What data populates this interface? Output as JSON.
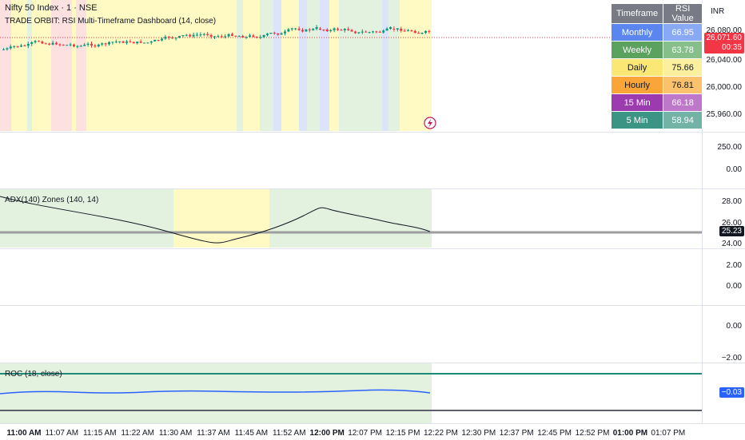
{
  "header": {
    "symbol_title": "Nifty 50 Index · 1 · NSE",
    "indicator_title": "TRADE ORBIT: RSI Multi-Timeframe Dashboard  (14, close)",
    "currency": "INR"
  },
  "rsi_table": {
    "headers": [
      "Timeframe",
      "RSI Value"
    ],
    "rows": [
      {
        "tf": "Monthly",
        "value": "66.95",
        "bg": "#5b86f0",
        "val_bg": "#8aa9f5",
        "color": "#ffffff"
      },
      {
        "tf": "Weekly",
        "value": "63.78",
        "bg": "#5aa25e",
        "val_bg": "#86bf89",
        "color": "#ffffff"
      },
      {
        "tf": "Daily",
        "value": "75.66",
        "bg": "#fbe774",
        "val_bg": "#fcf09e",
        "color": "#131722"
      },
      {
        "tf": "Hourly",
        "value": "76.81",
        "bg": "#f9a537",
        "val_bg": "#fbc26e",
        "color": "#131722"
      },
      {
        "tf": "15 Min",
        "value": "66.18",
        "bg": "#9c3ab0",
        "val_bg": "#bd78ca",
        "color": "#ffffff"
      },
      {
        "tf": "5 Min",
        "value": "58.94",
        "bg": "#3c9484",
        "val_bg": "#72b3a6",
        "color": "#ffffff"
      }
    ]
  },
  "price_axis": {
    "main": [
      "26,080.00",
      "26,040.00",
      "26,000.00",
      "25,960.00"
    ],
    "pane2": [
      "250.00",
      "0.00"
    ],
    "pane3": [
      "28.00",
      "26.00",
      "24.00"
    ],
    "pane4": [
      "2.00",
      "0.00"
    ],
    "pane5": [
      "0.00",
      "−2.00"
    ]
  },
  "price_label": {
    "value": "26,071.60",
    "countdown": "00:35",
    "color": "#f23645"
  },
  "adx": {
    "legend": "ADX(140) Zones (140, 14)",
    "last_label": "25.23"
  },
  "roc": {
    "legend": "ROC (18, close)",
    "last_label": "−0.03"
  },
  "time_axis": {
    "ticks": [
      {
        "label": "11:00 AM",
        "bold": true
      },
      {
        "label": "11:07 AM",
        "bold": false
      },
      {
        "label": "11:15 AM",
        "bold": false
      },
      {
        "label": "11:22 AM",
        "bold": false
      },
      {
        "label": "11:30 AM",
        "bold": false
      },
      {
        "label": "11:37 AM",
        "bold": false
      },
      {
        "label": "11:45 AM",
        "bold": false
      },
      {
        "label": "11:52 AM",
        "bold": false
      },
      {
        "label": "12:00 PM",
        "bold": true
      },
      {
        "label": "12:07 PM",
        "bold": false
      },
      {
        "label": "12:15 PM",
        "bold": false
      },
      {
        "label": "12:22 PM",
        "bold": false
      },
      {
        "label": "12:30 PM",
        "bold": false
      },
      {
        "label": "12:37 PM",
        "bold": false
      },
      {
        "label": "12:45 PM",
        "bold": false
      },
      {
        "label": "12:52 PM",
        "bold": false
      },
      {
        "label": "01:00 PM",
        "bold": true
      },
      {
        "label": "01:07 PM",
        "bold": false
      }
    ]
  },
  "colors": {
    "up": "#089981",
    "down": "#f23645",
    "zone_yellow": "#fff9c4",
    "zone_green": "#e3f1df",
    "zone_red": "#fde0e0",
    "zone_blue": "#dbe4fb",
    "roc_line": "#2962ff",
    "roc_band": "#1e8a79"
  },
  "icons": {
    "flash": "flash-icon"
  }
}
